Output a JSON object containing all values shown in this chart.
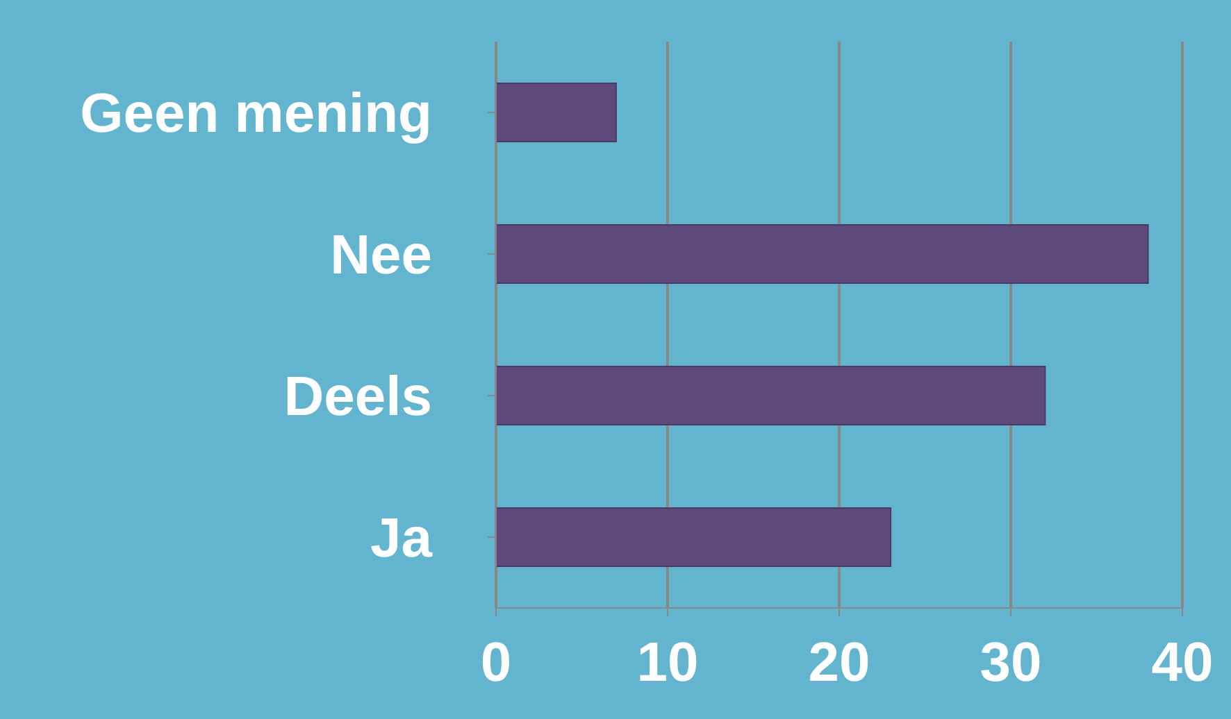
{
  "chart_data": {
    "type": "bar",
    "orientation": "horizontal",
    "categories": [
      "Geen mening",
      "Nee",
      "Deels",
      "Ja"
    ],
    "values": [
      7,
      38,
      32,
      23
    ],
    "color": "#5e4a7c",
    "xlim": [
      0,
      40
    ],
    "xticks": [
      0,
      10,
      20,
      30,
      40
    ],
    "grid": "x",
    "legend": false
  }
}
